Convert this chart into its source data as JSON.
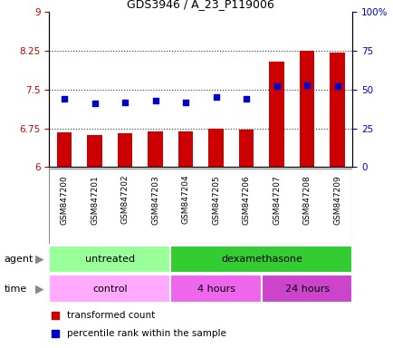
{
  "title": "GDS3946 / A_23_P119006",
  "samples": [
    "GSM847200",
    "GSM847201",
    "GSM847202",
    "GSM847203",
    "GSM847204",
    "GSM847205",
    "GSM847206",
    "GSM847207",
    "GSM847208",
    "GSM847209"
  ],
  "transformed_count": [
    6.68,
    6.62,
    6.65,
    6.69,
    6.69,
    6.74,
    6.73,
    8.05,
    8.26,
    8.22
  ],
  "percentile_rank": [
    44,
    41,
    42,
    43,
    42,
    45,
    44,
    52,
    53,
    52
  ],
  "ylim_left": [
    6.0,
    9.0
  ],
  "ylim_right": [
    0,
    100
  ],
  "yticks_left": [
    6.0,
    6.75,
    7.5,
    8.25,
    9.0
  ],
  "yticks_right": [
    0,
    25,
    50,
    75,
    100
  ],
  "ytick_labels_left": [
    "6",
    "6.75",
    "7.5",
    "8.25",
    "9"
  ],
  "ytick_labels_right": [
    "0",
    "25",
    "50",
    "75",
    "100%"
  ],
  "hlines": [
    6.75,
    7.5,
    8.25
  ],
  "bar_color": "#cc0000",
  "dot_color": "#0000cc",
  "bar_width": 0.5,
  "agent_groups": [
    {
      "label": "untreated",
      "xstart": 0,
      "xend": 4,
      "color": "#99ff99"
    },
    {
      "label": "dexamethasone",
      "xstart": 4,
      "xend": 10,
      "color": "#33cc33"
    }
  ],
  "time_groups": [
    {
      "label": "control",
      "xstart": 0,
      "xend": 4,
      "color": "#ffaaff"
    },
    {
      "label": "4 hours",
      "xstart": 4,
      "xend": 7,
      "color": "#ee66ee"
    },
    {
      "label": "24 hours",
      "xstart": 7,
      "xend": 10,
      "color": "#cc44cc"
    }
  ],
  "left_axis_color": "#cc0000",
  "right_axis_color": "#0000cc",
  "grid_color": "#333333",
  "background_color": "#ffffff",
  "plot_bg_color": "#ffffff",
  "xlabel_area_color": "#cccccc",
  "xlabel_divider_color": "#888888"
}
